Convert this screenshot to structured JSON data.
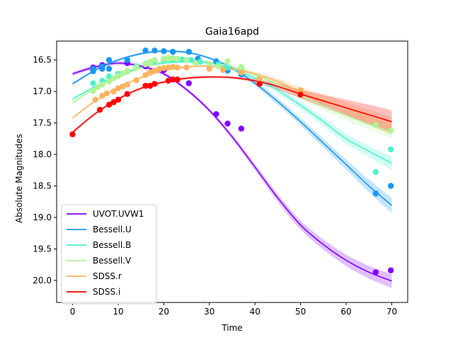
{
  "chart_data": {
    "type": "scatter",
    "title": "Gaia16apd",
    "xlabel": "Time",
    "ylabel": "Absolute Magnitudes",
    "xlim": [
      -3.5,
      73.5
    ],
    "ylim": [
      20.35,
      16.2
    ],
    "y_inverted": true,
    "xticks": [
      0,
      10,
      20,
      30,
      40,
      50,
      60,
      70
    ],
    "yticks": [
      16.5,
      17.0,
      17.5,
      18.0,
      18.5,
      19.0,
      19.5,
      20.0
    ],
    "xtick_labels": [
      "0",
      "10",
      "20",
      "30",
      "40",
      "50",
      "60",
      "70"
    ],
    "ytick_labels": [
      "16.5",
      "17.0",
      "17.5",
      "18.0",
      "18.5",
      "19.0",
      "19.5",
      "20.0"
    ],
    "grid": false,
    "legend_position": "lower left",
    "series": [
      {
        "name": "UVOT.UVW1",
        "color": "#8000ff",
        "points": [
          [
            4.5,
            16.62
          ],
          [
            6.5,
            16.58
          ],
          [
            12,
            16.55
          ],
          [
            16,
            16.6
          ],
          [
            20,
            16.66
          ],
          [
            25.5,
            16.87
          ],
          [
            31.5,
            17.36
          ],
          [
            34,
            17.51
          ],
          [
            37,
            17.59
          ],
          [
            66.5,
            19.87
          ],
          [
            69.8,
            19.84
          ]
        ],
        "model_x": [
          0,
          5,
          10,
          15,
          20,
          25,
          30,
          35,
          40,
          45,
          50,
          55,
          60,
          65,
          70
        ],
        "model_y": [
          16.72,
          16.61,
          16.55,
          16.6,
          16.72,
          16.97,
          17.3,
          17.72,
          18.2,
          18.69,
          19.12,
          19.43,
          19.68,
          19.87,
          20.01
        ],
        "model_err": [
          0.03,
          0.03,
          0.03,
          0.03,
          0.03,
          0.03,
          0.03,
          0.04,
          0.05,
          0.06,
          0.07,
          0.08,
          0.09,
          0.1,
          0.11
        ]
      },
      {
        "name": "Bessell.U",
        "color": "#1996f3",
        "points": [
          [
            4.5,
            16.68
          ],
          [
            4.5,
            16.64
          ],
          [
            6.5,
            16.64
          ],
          [
            6.5,
            16.6
          ],
          [
            8,
            16.64
          ],
          [
            8,
            16.5
          ],
          [
            12,
            16.5
          ],
          [
            16,
            16.35
          ],
          [
            18,
            16.35
          ],
          [
            20,
            16.36
          ],
          [
            22,
            16.37
          ],
          [
            25.5,
            16.37
          ],
          [
            27.5,
            16.48
          ],
          [
            31.5,
            16.52
          ],
          [
            34,
            16.67
          ],
          [
            37,
            16.73
          ],
          [
            66.5,
            18.62
          ],
          [
            69.8,
            18.5
          ]
        ],
        "model_x": [
          0,
          5,
          10,
          15,
          20,
          25,
          30,
          35,
          40,
          45,
          50,
          55,
          60,
          65,
          70
        ],
        "model_y": [
          16.88,
          16.66,
          16.5,
          16.4,
          16.36,
          16.38,
          16.47,
          16.63,
          16.87,
          17.16,
          17.48,
          17.82,
          18.16,
          18.5,
          18.81
        ],
        "model_err": [
          0.02,
          0.02,
          0.02,
          0.02,
          0.02,
          0.02,
          0.02,
          0.03,
          0.04,
          0.05,
          0.06,
          0.07,
          0.08,
          0.1,
          0.12
        ]
      },
      {
        "name": "Bessell.B",
        "color": "#4df3ce",
        "points": [
          [
            4.5,
            16.87
          ],
          [
            6.5,
            16.83
          ],
          [
            8,
            16.76
          ],
          [
            10,
            16.72
          ],
          [
            12,
            16.68
          ],
          [
            14,
            16.6
          ],
          [
            16,
            16.56
          ],
          [
            18,
            16.52
          ],
          [
            20,
            16.5
          ],
          [
            22,
            16.5
          ],
          [
            24,
            16.49
          ],
          [
            26,
            16.5
          ],
          [
            28,
            16.53
          ],
          [
            32,
            16.57
          ],
          [
            34,
            16.62
          ],
          [
            37,
            16.62
          ],
          [
            66.5,
            18.28
          ],
          [
            69.8,
            17.92
          ]
        ],
        "model_x": [
          0,
          5,
          10,
          15,
          20,
          25,
          30,
          35,
          40,
          45,
          50,
          55,
          60,
          65,
          70
        ],
        "model_y": [
          17.12,
          16.92,
          16.74,
          16.62,
          16.55,
          16.53,
          16.55,
          16.64,
          16.79,
          16.98,
          17.22,
          17.48,
          17.75,
          17.95,
          18.14
        ],
        "model_err": [
          0.02,
          0.02,
          0.02,
          0.02,
          0.02,
          0.02,
          0.02,
          0.03,
          0.04,
          0.05,
          0.06,
          0.07,
          0.08,
          0.09,
          0.11
        ]
      },
      {
        "name": "Bessell.V",
        "color": "#b2f396",
        "points": [
          [
            4.5,
            16.99
          ],
          [
            5.5,
            16.93
          ],
          [
            6.5,
            16.89
          ],
          [
            8,
            16.84
          ],
          [
            9,
            16.79
          ],
          [
            10,
            16.76
          ],
          [
            11,
            16.71
          ],
          [
            12,
            16.67
          ],
          [
            14,
            16.62
          ],
          [
            16,
            16.57
          ],
          [
            17,
            16.53
          ],
          [
            18,
            16.5
          ],
          [
            20,
            16.48
          ],
          [
            21,
            16.47
          ],
          [
            22,
            16.47
          ],
          [
            23,
            16.48
          ],
          [
            25,
            16.5
          ],
          [
            27,
            16.55
          ],
          [
            30,
            16.58
          ],
          [
            32,
            16.6
          ],
          [
            34,
            16.52
          ],
          [
            37,
            16.61
          ],
          [
            41,
            16.78
          ],
          [
            50,
            17.05
          ],
          [
            66.5,
            17.53
          ],
          [
            69.8,
            17.62
          ]
        ],
        "model_x": [
          0,
          5,
          10,
          15,
          20,
          25,
          30,
          35,
          40,
          45,
          50,
          55,
          60,
          65,
          70
        ],
        "model_y": [
          17.18,
          16.95,
          16.77,
          16.63,
          16.53,
          16.5,
          16.53,
          16.61,
          16.73,
          16.89,
          17.06,
          17.23,
          17.38,
          17.52,
          17.64
        ],
        "model_err": [
          0.02,
          0.02,
          0.02,
          0.02,
          0.02,
          0.02,
          0.02,
          0.03,
          0.04,
          0.05,
          0.06,
          0.07,
          0.08,
          0.09,
          0.1
        ]
      },
      {
        "name": "SDSS.r",
        "color": "#ffb360",
        "points": [
          [
            5,
            17.13
          ],
          [
            6.5,
            17.07
          ],
          [
            7.5,
            17.03
          ],
          [
            9,
            17.0
          ],
          [
            10,
            16.95
          ],
          [
            11,
            16.92
          ],
          [
            12,
            16.89
          ],
          [
            14,
            16.82
          ],
          [
            16,
            16.74
          ],
          [
            17,
            16.7
          ],
          [
            18,
            16.67
          ],
          [
            19,
            16.64
          ],
          [
            20,
            16.63
          ],
          [
            21,
            16.62
          ],
          [
            22,
            16.61
          ],
          [
            23,
            16.62
          ],
          [
            25,
            16.62
          ],
          [
            30,
            16.64
          ],
          [
            33,
            16.66
          ],
          [
            37,
            16.7
          ],
          [
            41,
            16.8
          ],
          [
            50,
            16.98
          ]
        ],
        "model_x": [
          0,
          5,
          10,
          15,
          20,
          25,
          30,
          35,
          40,
          45,
          50,
          55,
          60,
          65,
          70
        ],
        "model_y": [
          17.42,
          17.15,
          16.94,
          16.78,
          16.67,
          16.61,
          16.6,
          16.64,
          16.72,
          16.84,
          17.0,
          17.13,
          17.27,
          17.41,
          17.55
        ],
        "model_err": [
          0.02,
          0.02,
          0.02,
          0.02,
          0.02,
          0.02,
          0.02,
          0.02,
          0.03,
          0.05,
          0.07,
          0.08,
          0.1,
          0.12,
          0.14
        ]
      },
      {
        "name": "SDSS.i",
        "color": "#ff0000",
        "points": [
          [
            0,
            17.68
          ],
          [
            6,
            17.29
          ],
          [
            8,
            17.21
          ],
          [
            9,
            17.17
          ],
          [
            10,
            17.13
          ],
          [
            12,
            17.04
          ],
          [
            16,
            16.91
          ],
          [
            17,
            16.91
          ],
          [
            18,
            16.88
          ],
          [
            21,
            16.83
          ],
          [
            22,
            16.81
          ],
          [
            23,
            16.81
          ],
          [
            41,
            16.88
          ],
          [
            50,
            17.05
          ]
        ],
        "model_x": [
          0,
          5,
          10,
          15,
          20,
          25,
          30,
          35,
          40,
          45,
          50,
          55,
          60,
          65,
          70
        ],
        "model_y": [
          17.65,
          17.35,
          17.12,
          16.95,
          16.85,
          16.79,
          16.77,
          16.78,
          16.83,
          16.92,
          17.04,
          17.15,
          17.26,
          17.37,
          17.48
        ],
        "model_err": [
          0.02,
          0.02,
          0.02,
          0.02,
          0.02,
          0.02,
          0.02,
          0.02,
          0.03,
          0.05,
          0.07,
          0.1,
          0.13,
          0.16,
          0.18
        ]
      }
    ]
  }
}
